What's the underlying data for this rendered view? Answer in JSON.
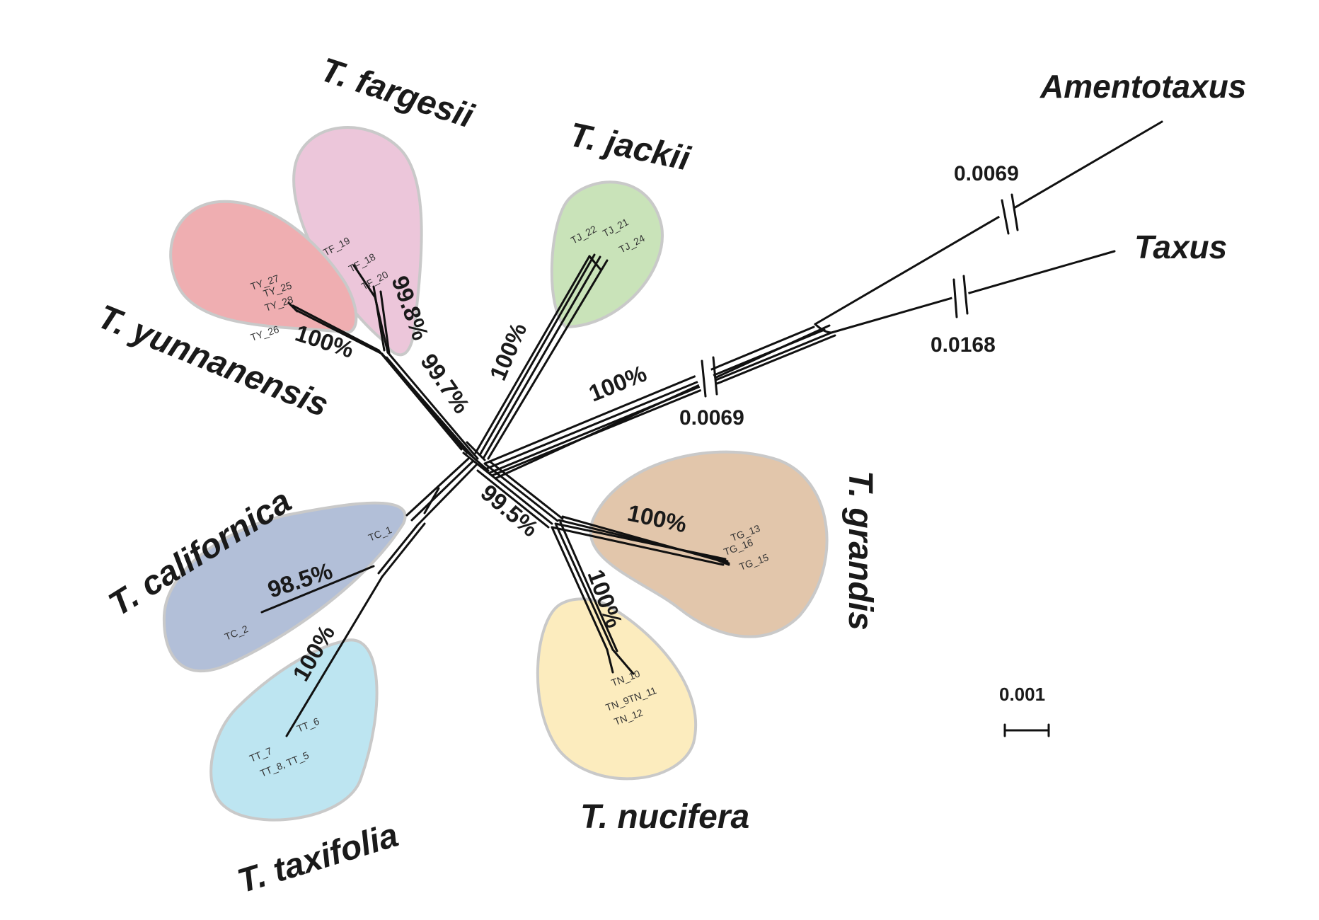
{
  "colors": {
    "fargesii": "#ecc6da",
    "yunnanensis": "#efaeb1",
    "jackii": "#c9e3b9",
    "californica": "#b2bfd8",
    "taxifolia": "#bde5f1",
    "nucifera": "#fcecbe",
    "grandis": "#e2c6ab",
    "branch": "#111111",
    "outline": "#c9c9c9"
  },
  "species": {
    "fargesii": "T. fargesii",
    "yunnanensis": "T. yunnanensis",
    "jackii": "T. jackii",
    "californica": "T. californica",
    "taxifolia": "T. taxifolia",
    "nucifera": "T. nucifera",
    "grandis": "T. grandis",
    "amentotaxus": "Amentotaxus",
    "taxus": "Taxus"
  },
  "support": {
    "yunnanensis": "100%",
    "fargesii": "99.8%",
    "fargesii_yunnanensis": "99.7%",
    "jackii": "100%",
    "outgroup_stem": "100%",
    "nucifera_grandis": "99.5%",
    "grandis": "100%",
    "nucifera": "100%",
    "californica": "98.5%",
    "taxifolia": "100%"
  },
  "branch_lengths": {
    "amentotaxus": "0.0069",
    "taxus": "0.0168",
    "stem": "0.0069"
  },
  "samples": {
    "yunnanensis": [
      "TY_27",
      "TY_25",
      "TY_28",
      "TY_26"
    ],
    "fargesii": [
      "TF_19",
      "TF_18",
      "TF_20"
    ],
    "jackii": [
      "TJ_22",
      "TJ_21",
      "TJ_24"
    ],
    "californica": [
      "TC_1",
      "TC_2"
    ],
    "taxifolia": [
      "TT_6",
      "TT_7",
      "TT_8, TT_5"
    ],
    "nucifera": [
      "TN_10",
      "TN_9TN_11",
      "TN_12"
    ],
    "grandis": [
      "TG_13",
      "TG_16",
      "TG_15"
    ]
  },
  "scale_bar": {
    "label": "0.001"
  }
}
